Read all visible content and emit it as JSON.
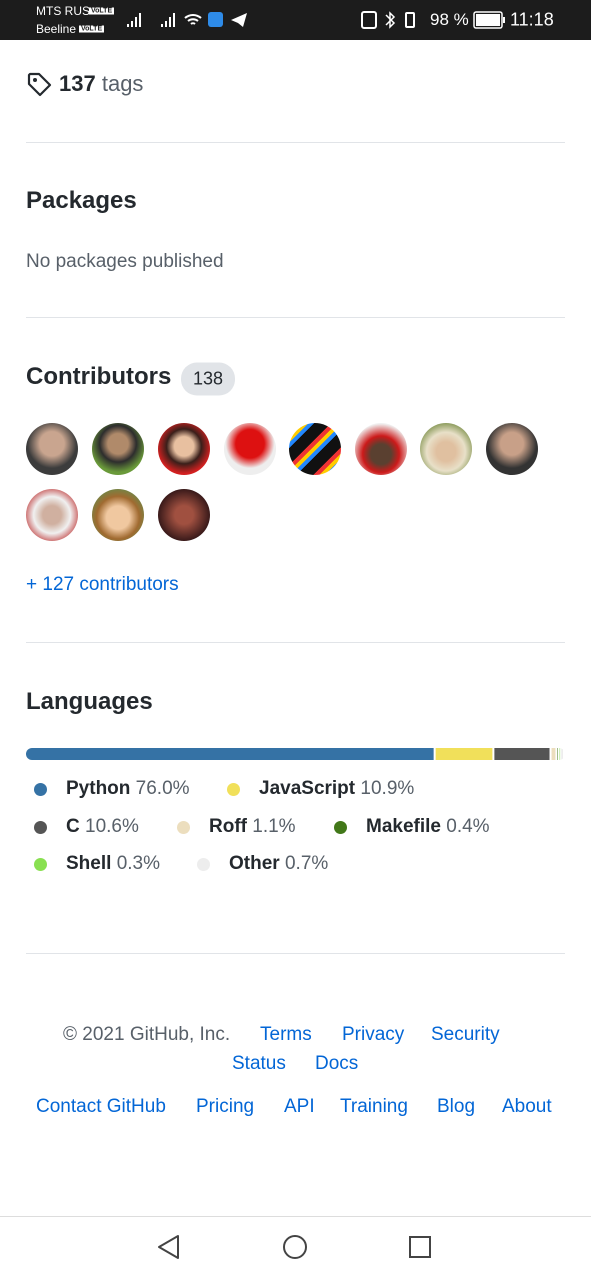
{
  "status_bar": {
    "carrier1": "MTS RUS",
    "carrier2": "Beeline",
    "volte": "VoLTE",
    "battery": "98 %",
    "time": "11:18"
  },
  "tags": {
    "count": "137",
    "label": "tags"
  },
  "packages": {
    "title": "Packages",
    "text": "No packages published"
  },
  "contributors": {
    "title": "Contributors",
    "count": "138",
    "more": "+ 127 contributors"
  },
  "languages": {
    "title": "Languages",
    "items": [
      {
        "name": "Python",
        "percent": 76.0,
        "label": "76.0%",
        "color": "#3572A5"
      },
      {
        "name": "JavaScript",
        "percent": 10.9,
        "label": "10.9%",
        "color": "#f1e05a"
      },
      {
        "name": "C",
        "percent": 10.6,
        "label": "10.6%",
        "color": "#555555"
      },
      {
        "name": "Roff",
        "percent": 1.1,
        "label": "1.1%",
        "color": "#ecdebe"
      },
      {
        "name": "Makefile",
        "percent": 0.4,
        "label": "0.4%",
        "color": "#427819"
      },
      {
        "name": "Shell",
        "percent": 0.3,
        "label": "0.3%",
        "color": "#89e051"
      },
      {
        "name": "Other",
        "percent": 0.7,
        "label": "0.7%",
        "color": "#ededed"
      }
    ]
  },
  "footer": {
    "copyright": "© 2021 GitHub, Inc.",
    "links": [
      "Terms",
      "Privacy",
      "Security",
      "Status",
      "Docs",
      "Contact GitHub",
      "Pricing",
      "API",
      "Training",
      "Blog",
      "About"
    ]
  }
}
